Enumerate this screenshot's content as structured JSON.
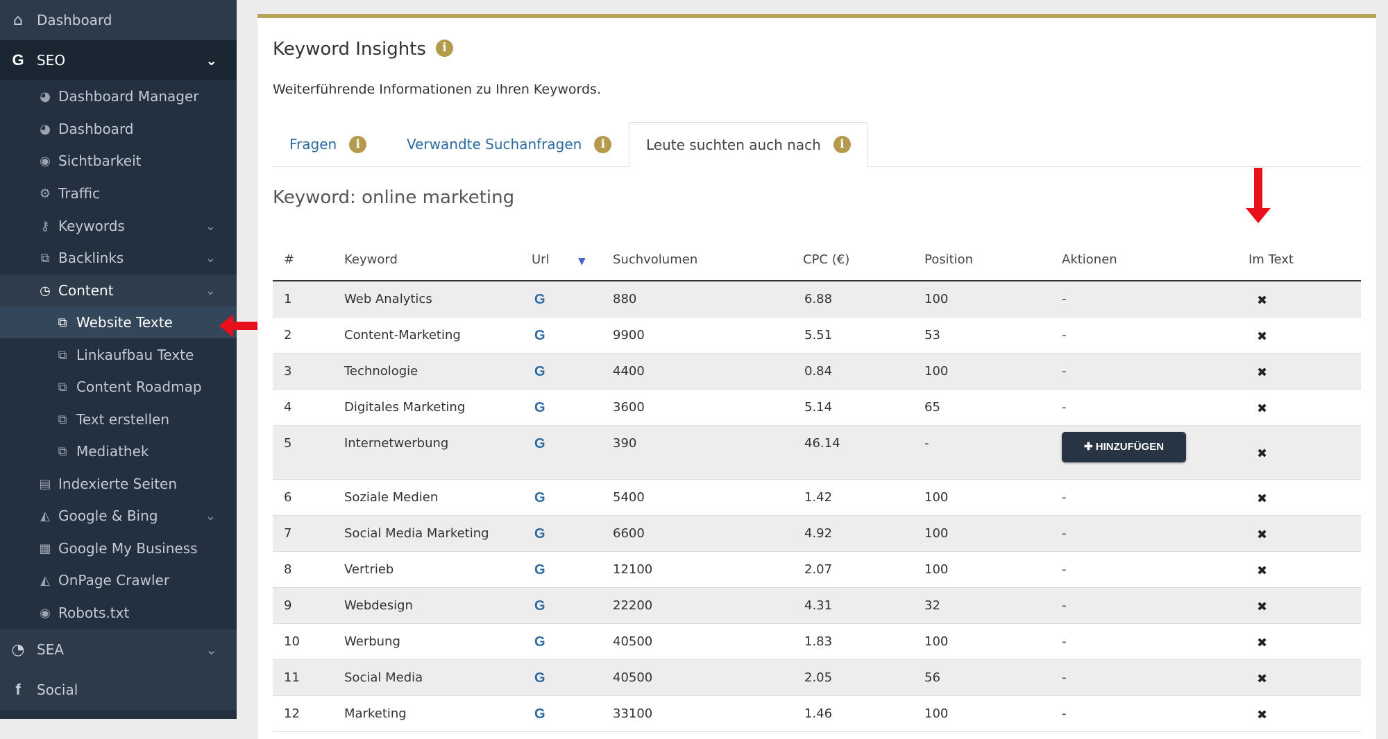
{
  "sidebar": {
    "dashboard": "Dashboard",
    "seo": "SEO",
    "items": [
      {
        "label": "Dashboard Manager",
        "icon": "palette-icon"
      },
      {
        "label": "Dashboard",
        "icon": "palette-icon"
      },
      {
        "label": "Sichtbarkeit",
        "icon": "eye-icon"
      },
      {
        "label": "Traffic",
        "icon": "cogs-icon"
      },
      {
        "label": "Keywords",
        "icon": "key-icon"
      },
      {
        "label": "Backlinks",
        "icon": "external-link-icon"
      },
      {
        "label": "Content",
        "icon": "clock-icon"
      },
      {
        "label": "Website Texte",
        "icon": "copy-icon"
      },
      {
        "label": "Linkaufbau Texte",
        "icon": "copy-icon"
      },
      {
        "label": "Content Roadmap",
        "icon": "copy-icon"
      },
      {
        "label": "Text erstellen",
        "icon": "copy-icon"
      },
      {
        "label": "Mediathek",
        "icon": "copy-icon"
      },
      {
        "label": "Indexierte Seiten",
        "icon": "file-icon"
      },
      {
        "label": "Google & Bing",
        "icon": "area-chart-icon"
      },
      {
        "label": "Google My Business",
        "icon": "store-icon"
      },
      {
        "label": "OnPage Crawler",
        "icon": "area-chart-icon"
      },
      {
        "label": "Robots.txt",
        "icon": "eye-icon"
      }
    ],
    "sea": "SEA",
    "social": "Social"
  },
  "panel": {
    "title": "Keyword Insights",
    "description": "Weiterführende Informationen zu Ihren Keywords.",
    "tabs": [
      "Fragen",
      "Verwandte Suchanfragen",
      "Leute suchten auch nach"
    ],
    "keyword_line": "Keyword: online marketing"
  },
  "table": {
    "headers": [
      "#",
      "Keyword",
      "Url",
      "Suchvolumen",
      "CPC (€)",
      "Position",
      "Aktionen",
      "Im Text"
    ],
    "add_button": "✚ HINZUFÜGEN",
    "rows": [
      {
        "n": "1",
        "kw": "Web Analytics",
        "vol": "880",
        "cpc": "6.88",
        "pos": "100",
        "act": "-"
      },
      {
        "n": "2",
        "kw": "Content-Marketing",
        "vol": "9900",
        "cpc": "5.51",
        "pos": "53",
        "act": "-"
      },
      {
        "n": "3",
        "kw": "Technologie",
        "vol": "4400",
        "cpc": "0.84",
        "pos": "100",
        "act": "-"
      },
      {
        "n": "4",
        "kw": "Digitales Marketing",
        "vol": "3600",
        "cpc": "5.14",
        "pos": "65",
        "act": "-"
      },
      {
        "n": "5",
        "kw": "Internetwerbung",
        "vol": "390",
        "cpc": "46.14",
        "pos": "-",
        "act": "button"
      },
      {
        "n": "6",
        "kw": "Soziale Medien",
        "vol": "5400",
        "cpc": "1.42",
        "pos": "100",
        "act": "-"
      },
      {
        "n": "7",
        "kw": "Social Media Marketing",
        "vol": "6600",
        "cpc": "4.92",
        "pos": "100",
        "act": "-"
      },
      {
        "n": "8",
        "kw": "Vertrieb",
        "vol": "12100",
        "cpc": "2.07",
        "pos": "100",
        "act": "-"
      },
      {
        "n": "9",
        "kw": "Webdesign",
        "vol": "22200",
        "cpc": "4.31",
        "pos": "32",
        "act": "-"
      },
      {
        "n": "10",
        "kw": "Werbung",
        "vol": "40500",
        "cpc": "1.83",
        "pos": "100",
        "act": "-"
      },
      {
        "n": "11",
        "kw": "Social Media",
        "vol": "40500",
        "cpc": "2.05",
        "pos": "56",
        "act": "-"
      },
      {
        "n": "12",
        "kw": "Marketing",
        "vol": "33100",
        "cpc": "1.46",
        "pos": "100",
        "act": "-"
      }
    ]
  },
  "colors": {
    "sidebar": "#23303f",
    "accent": "#b7a35c",
    "link": "#2d6aa0",
    "arrow": "#e8101a"
  }
}
